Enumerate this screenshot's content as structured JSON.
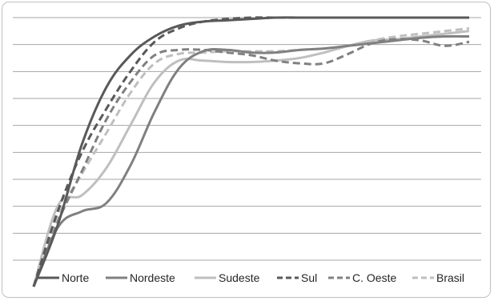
{
  "chart_data": {
    "type": "line",
    "title": "",
    "xlabel": "",
    "ylabel": "",
    "grid": true,
    "legend_placement": "bottom",
    "ylim": [
      0,
      10
    ],
    "x": [
      0,
      1,
      2,
      3,
      4,
      5,
      6,
      7,
      8,
      9,
      10,
      11,
      12,
      13,
      14,
      15,
      16,
      17,
      18
    ],
    "series": [
      {
        "name": "Norte",
        "color": "#595959",
        "dash": "solid",
        "values": [
          0.0,
          2.3,
          5.3,
          7.4,
          8.6,
          9.3,
          9.7,
          9.85,
          9.9,
          9.95,
          10.0,
          10.0,
          10.0,
          10.0,
          10.0,
          10.0,
          10.0,
          10.0,
          10.0
        ]
      },
      {
        "name": "Nordeste",
        "color": "#808080",
        "dash": "solid",
        "values": [
          0.0,
          2.2,
          2.8,
          3.1,
          4.5,
          6.5,
          8.1,
          8.75,
          8.8,
          8.7,
          8.7,
          8.8,
          8.85,
          8.95,
          9.05,
          9.15,
          9.25,
          9.3,
          9.3
        ]
      },
      {
        "name": "Sudeste",
        "color": "#bfbfbf",
        "dash": "solid",
        "values": [
          0.0,
          3.0,
          3.4,
          4.4,
          6.0,
          7.6,
          8.4,
          8.4,
          8.35,
          8.35,
          8.4,
          8.5,
          8.7,
          8.95,
          9.15,
          9.2,
          9.3,
          9.4,
          9.5
        ]
      },
      {
        "name": "Sul",
        "color": "#595959",
        "dash": "dashed",
        "values": [
          0.0,
          2.8,
          5.0,
          6.6,
          8.0,
          9.1,
          9.6,
          9.85,
          9.95,
          10.0,
          10.0,
          10.0,
          10.0,
          10.0,
          10.0,
          10.0,
          10.0,
          10.0,
          10.0
        ]
      },
      {
        "name": "C. Oeste",
        "color": "#808080",
        "dash": "dashed",
        "values": [
          0.0,
          2.4,
          4.3,
          6.2,
          7.6,
          8.6,
          8.8,
          8.8,
          8.7,
          8.6,
          8.4,
          8.3,
          8.3,
          8.65,
          9.05,
          9.2,
          9.15,
          8.95,
          9.1
        ]
      },
      {
        "name": "Brasil",
        "color": "#bfbfbf",
        "dash": "dashed",
        "values": [
          0.0,
          2.6,
          4.2,
          5.7,
          7.2,
          8.3,
          8.65,
          8.7,
          8.75,
          8.75,
          8.75,
          8.8,
          8.85,
          8.95,
          9.15,
          9.3,
          9.4,
          9.5,
          9.6
        ]
      }
    ]
  }
}
